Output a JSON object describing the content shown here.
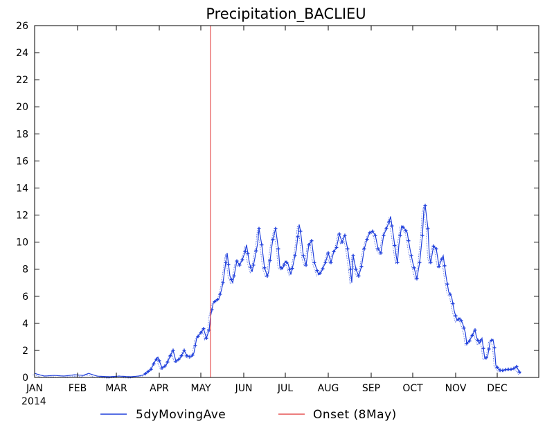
{
  "chart_data": {
    "type": "line",
    "title": "Precipitation_BACLIEU",
    "xlabel": "",
    "ylabel": "",
    "year_label": "2014",
    "x_unit": "day of year 2014",
    "xlim": [
      1,
      365
    ],
    "ylim": [
      0,
      26
    ],
    "yticks": [
      0,
      2,
      4,
      6,
      8,
      10,
      12,
      14,
      16,
      18,
      20,
      22,
      24,
      26
    ],
    "months": [
      {
        "label": "JAN",
        "day": 1
      },
      {
        "label": "FEB",
        "day": 32
      },
      {
        "label": "MAR",
        "day": 60
      },
      {
        "label": "APR",
        "day": 91
      },
      {
        "label": "MAY",
        "day": 121
      },
      {
        "label": "JUN",
        "day": 152
      },
      {
        "label": "JUL",
        "day": 182
      },
      {
        "label": "AUG",
        "day": 213
      },
      {
        "label": "SEP",
        "day": 244
      },
      {
        "label": "OCT",
        "day": 274
      },
      {
        "label": "NOV",
        "day": 305
      },
      {
        "label": "DEC",
        "day": 335
      }
    ],
    "grid": false,
    "legend_position": "bottom",
    "colors": {
      "series": "#1f3fdc",
      "onset": "#e03030",
      "axis": "#000000"
    },
    "series": [
      {
        "name": "5dyMovingAve",
        "keypoints": [
          [
            1,
            0.3
          ],
          [
            8,
            0.1
          ],
          [
            15,
            0.15
          ],
          [
            22,
            0.1
          ],
          [
            30,
            0.2
          ],
          [
            36,
            0.15
          ],
          [
            40,
            0.3
          ],
          [
            46,
            0.1
          ],
          [
            55,
            0.05
          ],
          [
            62,
            0.1
          ],
          [
            70,
            0.05
          ],
          [
            76,
            0.1
          ],
          [
            80,
            0.2
          ],
          [
            85,
            0.6
          ],
          [
            88,
            1.2
          ],
          [
            90,
            1.5
          ],
          [
            93,
            0.7
          ],
          [
            96,
            0.9
          ],
          [
            99,
            1.6
          ],
          [
            101,
            2.0
          ],
          [
            103,
            1.2
          ],
          [
            106,
            1.4
          ],
          [
            109,
            2.0
          ],
          [
            111,
            1.6
          ],
          [
            114,
            1.5
          ],
          [
            116,
            1.8
          ],
          [
            118,
            2.9
          ],
          [
            121,
            3.3
          ],
          [
            123,
            3.6
          ],
          [
            125,
            2.9
          ],
          [
            127,
            3.5
          ],
          [
            128,
            4.5
          ],
          [
            130,
            5.5
          ],
          [
            132,
            5.7
          ],
          [
            134,
            5.8
          ],
          [
            136,
            6.5
          ],
          [
            137,
            7.0
          ],
          [
            139,
            8.5
          ],
          [
            140,
            9.2
          ],
          [
            142,
            7.5
          ],
          [
            144,
            7.0
          ],
          [
            145,
            7.5
          ],
          [
            147,
            8.6
          ],
          [
            149,
            8.3
          ],
          [
            151,
            8.7
          ],
          [
            153,
            9.3
          ],
          [
            154,
            9.8
          ],
          [
            156,
            8.5
          ],
          [
            158,
            7.8
          ],
          [
            160,
            8.8
          ],
          [
            162,
            9.9
          ],
          [
            163,
            11.0
          ],
          [
            165,
            9.8
          ],
          [
            167,
            8.1
          ],
          [
            169,
            7.5
          ],
          [
            170,
            7.8
          ],
          [
            172,
            9.5
          ],
          [
            173,
            10.2
          ],
          [
            175,
            11.0
          ],
          [
            177,
            9.5
          ],
          [
            178,
            8.2
          ],
          [
            180,
            8.0
          ],
          [
            182,
            8.6
          ],
          [
            184,
            8.4
          ],
          [
            186,
            7.6
          ],
          [
            188,
            8.5
          ],
          [
            190,
            9.5
          ],
          [
            192,
            11.3
          ],
          [
            193,
            10.8
          ],
          [
            195,
            9.0
          ],
          [
            197,
            8.3
          ],
          [
            199,
            9.8
          ],
          [
            201,
            10.1
          ],
          [
            203,
            8.5
          ],
          [
            206,
            7.6
          ],
          [
            208,
            7.8
          ],
          [
            211,
            8.5
          ],
          [
            213,
            9.2
          ],
          [
            215,
            8.5
          ],
          [
            217,
            9.3
          ],
          [
            219,
            9.6
          ],
          [
            221,
            10.6
          ],
          [
            223,
            10.0
          ],
          [
            225,
            10.5
          ],
          [
            227,
            9.5
          ],
          [
            229,
            8.0
          ],
          [
            230,
            7.0
          ],
          [
            231,
            9.0
          ],
          [
            233,
            8.0
          ],
          [
            235,
            7.5
          ],
          [
            237,
            8.2
          ],
          [
            239,
            9.5
          ],
          [
            241,
            10.2
          ],
          [
            243,
            10.7
          ],
          [
            245,
            10.8
          ],
          [
            247,
            10.5
          ],
          [
            249,
            9.5
          ],
          [
            251,
            9.2
          ],
          [
            253,
            10.5
          ],
          [
            255,
            11.0
          ],
          [
            257,
            11.5
          ],
          [
            258,
            11.9
          ],
          [
            260,
            10.5
          ],
          [
            262,
            9.0
          ],
          [
            263,
            8.5
          ],
          [
            264,
            9.8
          ],
          [
            266,
            11.2
          ],
          [
            268,
            11.0
          ],
          [
            270,
            10.7
          ],
          [
            272,
            9.5
          ],
          [
            274,
            8.5
          ],
          [
            276,
            7.7
          ],
          [
            277,
            7.3
          ],
          [
            279,
            8.5
          ],
          [
            281,
            10.5
          ],
          [
            282,
            12.3
          ],
          [
            283,
            12.7
          ],
          [
            285,
            11.0
          ],
          [
            286,
            9.0
          ],
          [
            287,
            8.5
          ],
          [
            289,
            9.7
          ],
          [
            291,
            9.5
          ],
          [
            293,
            8.2
          ],
          [
            294,
            8.5
          ],
          [
            296,
            9.0
          ],
          [
            298,
            7.5
          ],
          [
            300,
            6.3
          ],
          [
            302,
            6.0
          ],
          [
            304,
            4.9
          ],
          [
            306,
            4.2
          ],
          [
            308,
            4.4
          ],
          [
            310,
            4.0
          ],
          [
            312,
            3.3
          ],
          [
            313,
            2.5
          ],
          [
            315,
            2.7
          ],
          [
            317,
            3.1
          ],
          [
            319,
            3.5
          ],
          [
            320,
            3.0
          ],
          [
            322,
            2.5
          ],
          [
            324,
            2.9
          ],
          [
            326,
            1.4
          ],
          [
            328,
            1.5
          ],
          [
            330,
            2.7
          ],
          [
            332,
            2.8
          ],
          [
            333,
            2.2
          ],
          [
            334,
            0.9
          ],
          [
            336,
            0.6
          ],
          [
            338,
            0.5
          ],
          [
            342,
            0.6
          ],
          [
            346,
            0.6
          ],
          [
            349,
            0.8
          ],
          [
            351,
            0.4
          ],
          [
            352,
            0.3
          ]
        ]
      },
      {
        "name": "Onset (8May)",
        "day": 128
      }
    ]
  }
}
